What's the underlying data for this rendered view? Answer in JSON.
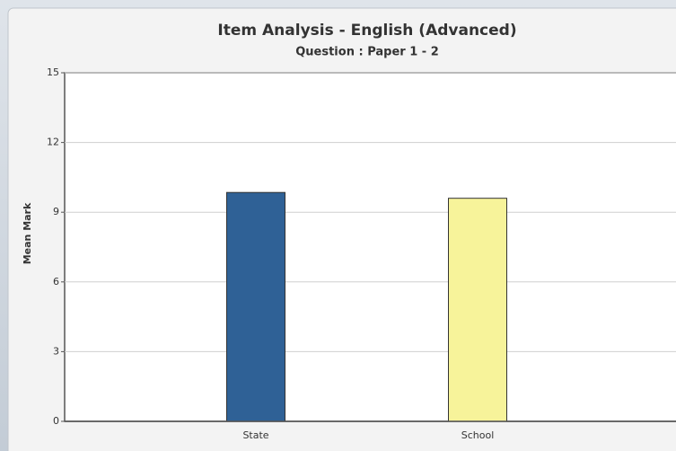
{
  "chart_data": {
    "type": "bar",
    "title": "Item Analysis - English (Advanced)",
    "subtitle": "Question : Paper 1 - 2",
    "y_label": "Mean Mark",
    "categories": [
      "State",
      "School"
    ],
    "values": [
      9.85,
      9.6
    ],
    "colors": [
      "#2f6196",
      "#f7f39a"
    ],
    "ylim": [
      0,
      15
    ],
    "yticks": [
      0,
      3,
      6,
      9,
      12,
      15
    ],
    "grid": true
  }
}
